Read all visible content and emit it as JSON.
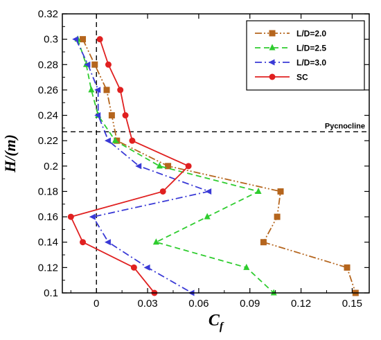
{
  "chart_data": {
    "type": "line",
    "xlabel": "C",
    "xlabel_sub": "f",
    "ylabel": "H/(m)",
    "xlim": [
      -0.02,
      0.16
    ],
    "ylim": [
      0.1,
      0.32
    ],
    "xticks": [
      0,
      0.03,
      0.06,
      0.09,
      0.12,
      0.15
    ],
    "xtick_labels": [
      "0",
      "0.03",
      "0.06",
      "0.09",
      "0.12",
      "0.15"
    ],
    "yticks": [
      0.1,
      0.12,
      0.14,
      0.16,
      0.18,
      0.2,
      0.22,
      0.24,
      0.26,
      0.28,
      0.3,
      0.32
    ],
    "ytick_labels": [
      "0.1",
      "0.12",
      "0.14",
      "0.16",
      "0.18",
      "0.2",
      "0.22",
      "0.24",
      "0.26",
      "0.28",
      "0.3",
      "0.32"
    ],
    "grid": false,
    "legend_position": "top-right",
    "vertical_reference": {
      "x": 0,
      "style": "dashed"
    },
    "horizontal_reference": {
      "y": 0.227,
      "label": "Pycnocline",
      "style": "dashed"
    },
    "series": [
      {
        "name": "L/D=2.0",
        "color": "#b5651d",
        "marker": "square",
        "dash": "10,3,2,3,2,3",
        "points": [
          [
            -0.008,
            0.3
          ],
          [
            -0.001,
            0.28
          ],
          [
            0.006,
            0.26
          ],
          [
            0.009,
            0.24
          ],
          [
            0.012,
            0.22
          ],
          [
            0.042,
            0.2
          ],
          [
            0.108,
            0.18
          ],
          [
            0.106,
            0.16
          ],
          [
            0.098,
            0.14
          ],
          [
            0.147,
            0.12
          ],
          [
            0.152,
            0.1
          ]
        ]
      },
      {
        "name": "L/D=2.5",
        "color": "#2ecc2e",
        "marker": "triangle",
        "dash": "8,5",
        "points": [
          [
            -0.011,
            0.3
          ],
          [
            -0.006,
            0.28
          ],
          [
            -0.003,
            0.26
          ],
          [
            0.001,
            0.24
          ],
          [
            0.011,
            0.22
          ],
          [
            0.037,
            0.2
          ],
          [
            0.095,
            0.18
          ],
          [
            0.065,
            0.16
          ],
          [
            0.035,
            0.14
          ],
          [
            0.088,
            0.12
          ],
          [
            0.104,
            0.1
          ]
        ]
      },
      {
        "name": "L/D=3.0",
        "color": "#3a3ad6",
        "marker": "triangle-left",
        "dash": "10,4,2,4",
        "points": [
          [
            -0.012,
            0.3
          ],
          [
            -0.005,
            0.28
          ],
          [
            0.001,
            0.26
          ],
          [
            0.001,
            0.24
          ],
          [
            0.007,
            0.22
          ],
          [
            0.025,
            0.2
          ],
          [
            0.066,
            0.18
          ],
          [
            -0.002,
            0.16
          ],
          [
            0.007,
            0.14
          ],
          [
            0.03,
            0.12
          ],
          [
            0.056,
            0.1
          ]
        ]
      },
      {
        "name": "SC",
        "color": "#e02020",
        "marker": "circle",
        "dash": "",
        "points": [
          [
            0.002,
            0.3
          ],
          [
            0.007,
            0.28
          ],
          [
            0.014,
            0.26
          ],
          [
            0.017,
            0.24
          ],
          [
            0.021,
            0.22
          ],
          [
            0.054,
            0.2
          ],
          [
            0.039,
            0.18
          ],
          [
            -0.015,
            0.16
          ],
          [
            -0.008,
            0.14
          ],
          [
            0.022,
            0.12
          ],
          [
            0.034,
            0.1
          ]
        ]
      }
    ]
  }
}
